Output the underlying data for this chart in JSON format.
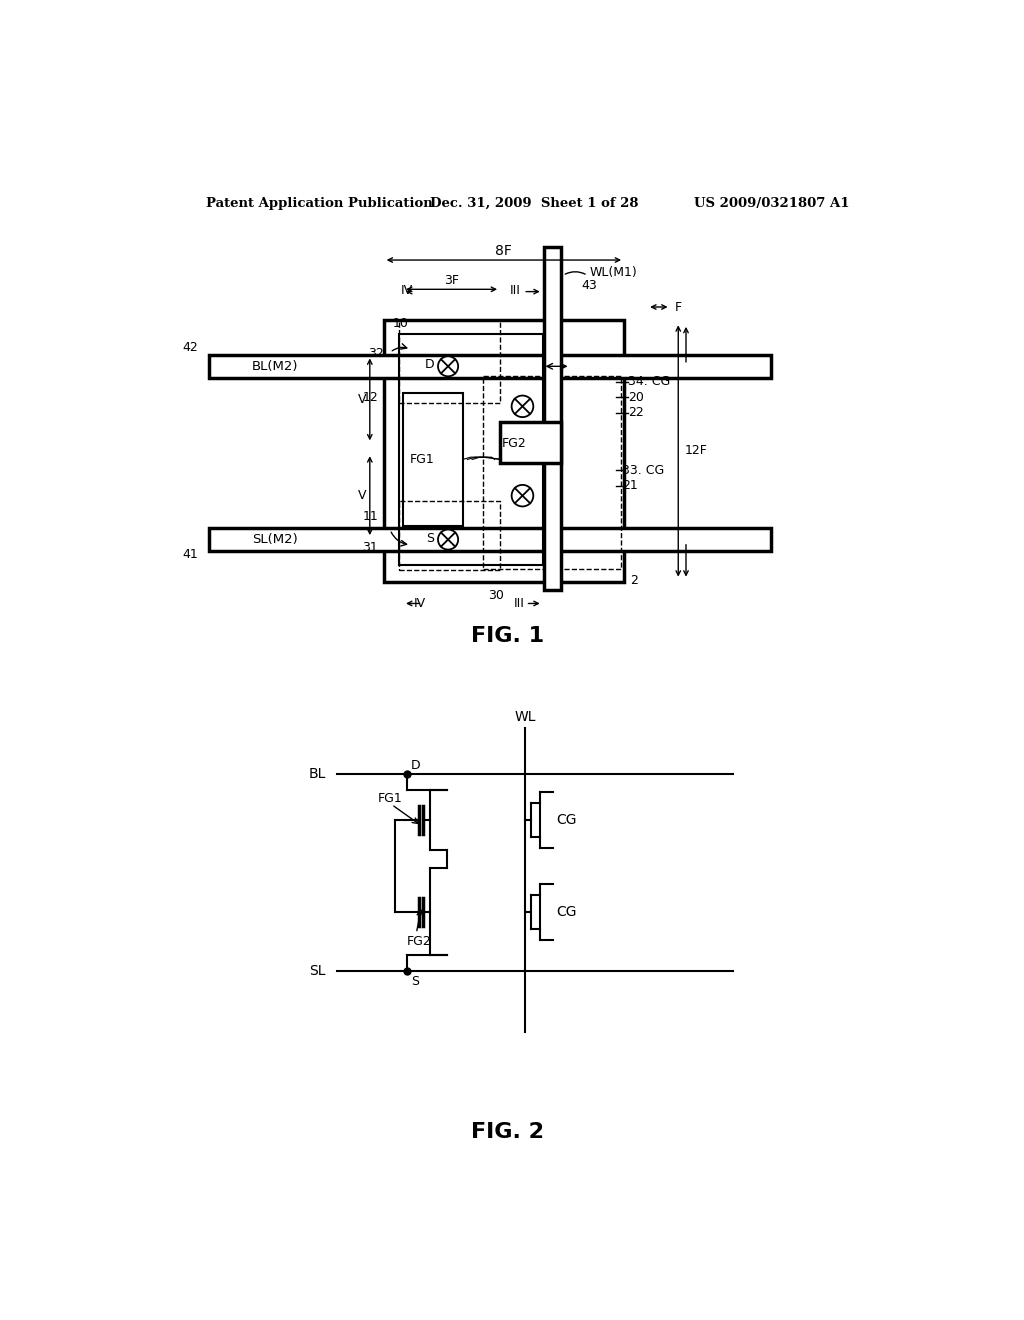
{
  "bg_color": "#ffffff",
  "text_color": "#000000",
  "header_left": "Patent Application Publication",
  "header_mid": "Dec. 31, 2009  Sheet 1 of 28",
  "header_right": "US 2009/0321807 A1",
  "fig1_label": "FIG. 1",
  "fig2_label": "FIG. 2"
}
